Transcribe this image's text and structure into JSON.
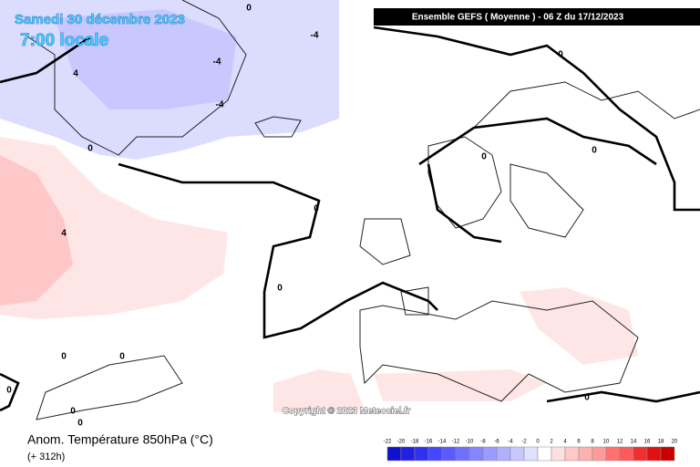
{
  "header": {
    "date": "Samedi 30 décembre 2023",
    "time": "7:00 locale",
    "run": "Ensemble GEFS  ( Moyenne )  -  06 Z du 17/12/2023"
  },
  "copyright": "Copyright © 2023 Meteociel.fr",
  "footer": {
    "title": "Anom. Température 850hPa (°C)",
    "lead": "(+ 312h)"
  },
  "contour_labels": [
    0,
    -4,
    -4,
    4,
    -4,
    0,
    0,
    0,
    0,
    0,
    4,
    0,
    0,
    0,
    0,
    0,
    0,
    0
  ],
  "colorscale": {
    "ticks": [
      -22,
      -20,
      -18,
      -16,
      -14,
      -12,
      -10,
      -8,
      -6,
      -4,
      -2,
      0,
      2,
      4,
      6,
      8,
      10,
      12,
      14,
      16,
      18,
      20
    ],
    "colors": [
      "#1010d0",
      "#2020e0",
      "#3030f0",
      "#4646ff",
      "#5a5aff",
      "#7070ff",
      "#8585ff",
      "#9a9aff",
      "#b0b0ff",
      "#c8c8ff",
      "#e0e0ff",
      "#ffffff",
      "#ffe0e0",
      "#ffc8c8",
      "#ffb0b0",
      "#ff9a9a",
      "#ff7070",
      "#ff5a5a",
      "#f03030",
      "#e01010",
      "#c80000"
    ]
  }
}
